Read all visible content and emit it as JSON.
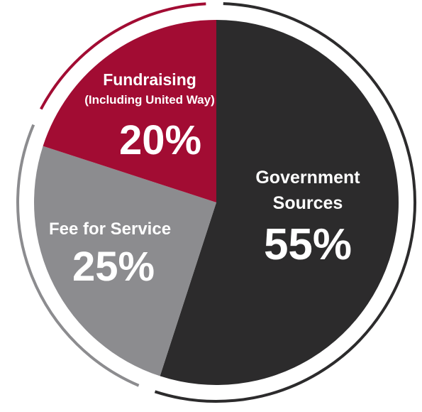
{
  "chart_data": {
    "type": "pie",
    "title": "",
    "legend": "none",
    "ring": true,
    "slices": [
      {
        "name": "Government Sources",
        "label_lines": [
          "Government",
          "Sources"
        ],
        "value": 55,
        "value_label": "55%",
        "color": "#2c2b2c"
      },
      {
        "name": "Fee for Service",
        "label_lines": [
          "Fee for Service"
        ],
        "value": 25,
        "value_label": "25%",
        "color": "#8c8c8f"
      },
      {
        "name": "Fundraising (Including United Way)",
        "label_lines": [
          "Fundraising",
          "(Including United Way)"
        ],
        "value": 20,
        "value_label": "20%",
        "color": "#a20c33"
      }
    ],
    "ring_color": "#2c2b2c",
    "ring_highlight_color": "#a20c33",
    "ring_light_color": "#8c8c8f"
  }
}
